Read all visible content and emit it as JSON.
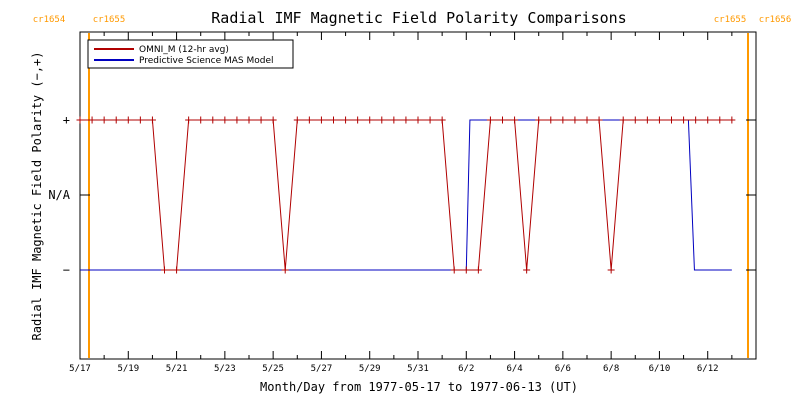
{
  "chart_data": {
    "type": "line",
    "title": "Radial IMF Magnetic Field Polarity Comparisons",
    "xlabel": "Month/Day from 1977-05-17 to 1977-06-13 (UT)",
    "ylabel": "Radial IMF Magnetic Field Polarity (−,+)",
    "x_tick_labels": [
      "5/17",
      "5/19",
      "5/21",
      "5/23",
      "5/25",
      "5/27",
      "5/29",
      "5/31",
      "6/2",
      "6/4",
      "6/6",
      "6/8",
      "6/10",
      "6/12"
    ],
    "y_tick_labels": [
      "+",
      "N/A",
      "−"
    ],
    "carrington_rotations": {
      "start_labels": [
        "cr1654",
        "cr1655"
      ],
      "end_labels": [
        "cr1655",
        "cr1656"
      ],
      "color": "#ff9900"
    },
    "legend": {
      "position": "top-left"
    },
    "series": [
      {
        "name": "OMNI_M (12-hr avg)",
        "color": "#b00000",
        "marker": "plus",
        "unit_note": "x in days since 5/17 00:00 UT; y: +1 = +, 0 = N/A, -1 = −",
        "points": [
          [
            0.0,
            1
          ],
          [
            0.5,
            1
          ],
          [
            1.0,
            1
          ],
          [
            1.5,
            1
          ],
          [
            2.0,
            1
          ],
          [
            2.5,
            1
          ],
          [
            3.0,
            1
          ],
          [
            3.5,
            -1
          ],
          [
            4.0,
            -1
          ],
          [
            4.5,
            1
          ],
          [
            5.0,
            1
          ],
          [
            5.5,
            1
          ],
          [
            6.0,
            1
          ],
          [
            6.5,
            1
          ],
          [
            7.0,
            1
          ],
          [
            7.5,
            1
          ],
          [
            8.0,
            1
          ],
          [
            8.5,
            -1
          ],
          [
            9.0,
            1
          ],
          [
            9.5,
            1
          ],
          [
            10.0,
            1
          ],
          [
            10.5,
            1
          ],
          [
            11.0,
            1
          ],
          [
            11.5,
            1
          ],
          [
            12.0,
            1
          ],
          [
            12.5,
            1
          ],
          [
            13.0,
            1
          ],
          [
            13.5,
            1
          ],
          [
            14.0,
            1
          ],
          [
            14.5,
            1
          ],
          [
            15.0,
            1
          ],
          [
            15.5,
            -1
          ],
          [
            16.0,
            -1
          ],
          [
            16.5,
            -1
          ],
          [
            17.0,
            1
          ],
          [
            17.5,
            1
          ],
          [
            18.0,
            1
          ],
          [
            18.5,
            -1
          ],
          [
            19.0,
            1
          ],
          [
            19.5,
            1
          ],
          [
            20.0,
            1
          ],
          [
            20.5,
            1
          ],
          [
            21.0,
            1
          ],
          [
            21.5,
            1
          ],
          [
            22.0,
            -1
          ],
          [
            22.5,
            1
          ],
          [
            23.0,
            1
          ],
          [
            23.5,
            1
          ],
          [
            24.0,
            1
          ],
          [
            24.5,
            1
          ],
          [
            25.0,
            1
          ],
          [
            25.5,
            1
          ],
          [
            26.0,
            1
          ],
          [
            26.5,
            1
          ],
          [
            27.0,
            1
          ]
        ]
      },
      {
        "name": "Predictive Science MAS Model",
        "color": "#0000c0",
        "marker": "none",
        "unit_note": "x in days since 5/17 00:00 UT; y: +1 = +, -1 = −",
        "points": [
          [
            0.0,
            -1
          ],
          [
            16.0,
            -1
          ],
          [
            16.15,
            1
          ],
          [
            25.2,
            1
          ],
          [
            25.45,
            -1
          ],
          [
            27.0,
            -1
          ]
        ]
      }
    ]
  }
}
